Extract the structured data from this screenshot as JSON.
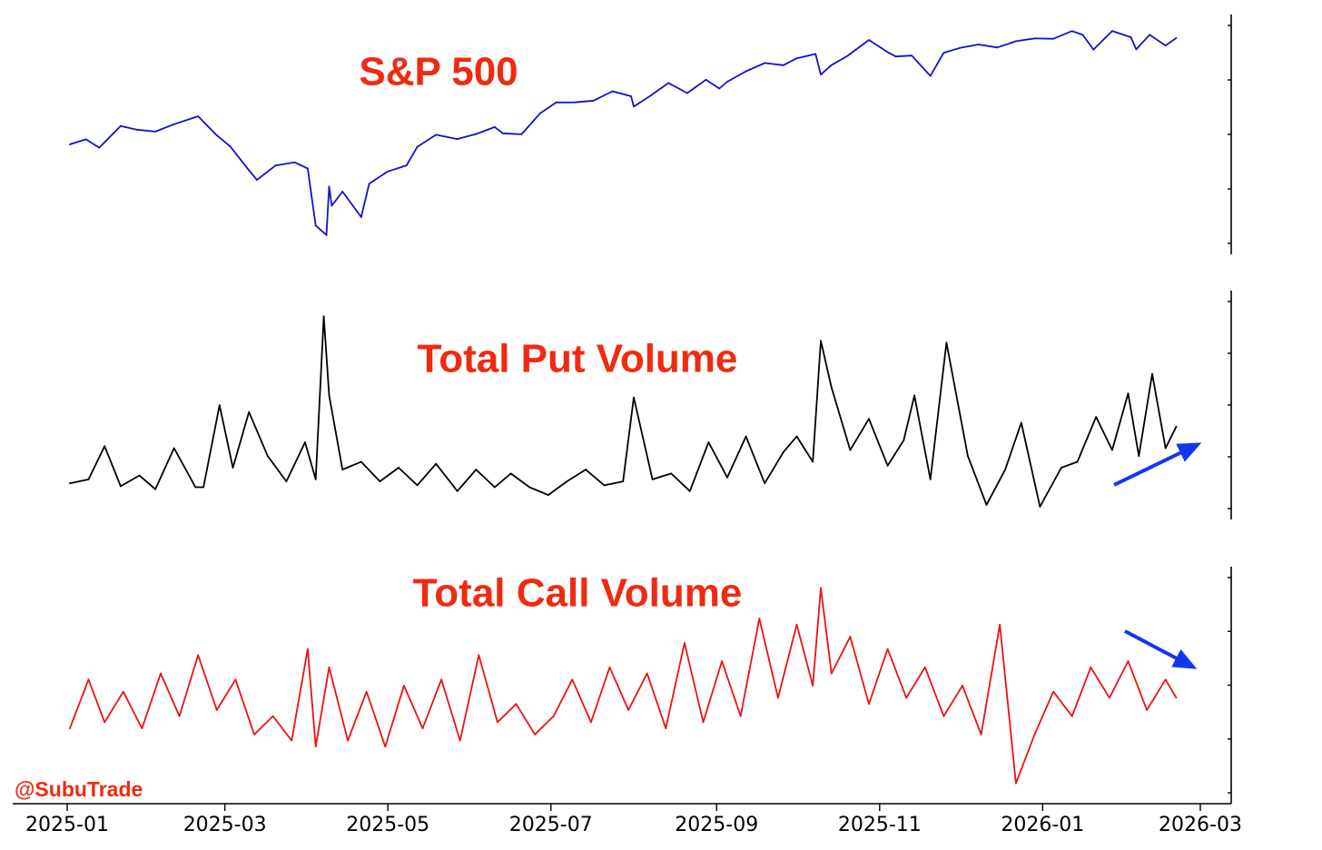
{
  "colors": {
    "sp500": "#1111cc",
    "put": "#000000",
    "call": "#ee1111",
    "title": "#f02a10",
    "arrow": "#1038ee"
  },
  "watermark": "@SubuTrade",
  "chart_data": [
    {
      "type": "line",
      "title": "S&P 500",
      "series": [
        {
          "x": [
            "2025-01-02",
            "2025-01-08",
            "2025-01-13",
            "2025-01-21",
            "2025-01-27",
            "2025-02-03",
            "2025-02-10",
            "2025-02-19",
            "2025-02-26",
            "2025-03-03",
            "2025-03-10",
            "2025-03-13",
            "2025-03-20",
            "2025-03-27",
            "2025-04-01",
            "2025-04-04",
            "2025-04-08",
            "2025-04-09",
            "2025-04-10",
            "2025-04-14",
            "2025-04-21",
            "2025-04-24",
            "2025-05-01",
            "2025-05-08",
            "2025-05-12",
            "2025-05-19",
            "2025-05-27",
            "2025-06-03",
            "2025-06-10",
            "2025-06-13",
            "2025-06-20",
            "2025-06-27",
            "2025-07-03",
            "2025-07-10",
            "2025-07-17",
            "2025-07-24",
            "2025-07-31",
            "2025-08-01",
            "2025-08-07",
            "2025-08-14",
            "2025-08-21",
            "2025-08-28",
            "2025-09-02",
            "2025-09-05",
            "2025-09-12",
            "2025-09-19",
            "2025-09-26",
            "2025-10-01",
            "2025-10-08",
            "2025-10-10",
            "2025-10-14",
            "2025-10-20",
            "2025-10-28",
            "2025-11-04",
            "2025-11-07",
            "2025-11-13",
            "2025-11-20",
            "2025-11-25",
            "2025-12-01",
            "2025-12-08",
            "2025-12-15",
            "2025-12-22",
            "2025-12-29",
            "2026-01-05",
            "2026-01-12",
            "2026-01-16",
            "2026-01-20",
            "2026-01-27",
            "2026-02-03",
            "2026-02-05",
            "2026-02-10",
            "2026-02-16",
            "2026-02-20"
          ],
          "y": [
            5868,
            5918,
            5836,
            6049,
            6012,
            5994,
            6066,
            6144,
            5956,
            5849,
            5614,
            5521,
            5662,
            5693,
            5633,
            5074,
            4982,
            5456,
            5268,
            5406,
            5158,
            5484,
            5604,
            5663,
            5844,
            5963,
            5921,
            5970,
            6038,
            5977,
            5967,
            6173,
            6279,
            6280,
            6297,
            6388,
            6339,
            6238,
            6340,
            6469,
            6370,
            6501,
            6415,
            6481,
            6584,
            6664,
            6643,
            6711,
            6753,
            6552,
            6644,
            6735,
            6890,
            6771,
            6728,
            6737,
            6538,
            6765,
            6812,
            6846,
            6816,
            6878,
            6905,
            6902,
            6977,
            6940,
            6796,
            6978,
            6917,
            6798,
            6941,
            6836,
            6909
          ]
        }
      ],
      "ylim": [
        4900,
        7050
      ]
    },
    {
      "type": "line",
      "title": "Total Put Volume",
      "series": [
        {
          "x": [
            "2025-01-02",
            "2025-01-09",
            "2025-01-15",
            "2025-01-21",
            "2025-01-28",
            "2025-02-03",
            "2025-02-10",
            "2025-02-18",
            "2025-02-21",
            "2025-02-27",
            "2025-03-04",
            "2025-03-10",
            "2025-03-17",
            "2025-03-24",
            "2025-03-31",
            "2025-04-04",
            "2025-04-07",
            "2025-04-09",
            "2025-04-14",
            "2025-04-21",
            "2025-04-28",
            "2025-05-05",
            "2025-05-12",
            "2025-05-19",
            "2025-05-27",
            "2025-06-03",
            "2025-06-10",
            "2025-06-16",
            "2025-06-23",
            "2025-06-30",
            "2025-07-07",
            "2025-07-14",
            "2025-07-21",
            "2025-07-28",
            "2025-08-01",
            "2025-08-08",
            "2025-08-15",
            "2025-08-22",
            "2025-08-29",
            "2025-09-05",
            "2025-09-12",
            "2025-09-19",
            "2025-09-26",
            "2025-10-01",
            "2025-10-07",
            "2025-10-10",
            "2025-10-14",
            "2025-10-21",
            "2025-10-28",
            "2025-11-04",
            "2025-11-10",
            "2025-11-14",
            "2025-11-20",
            "2025-11-26",
            "2025-12-04",
            "2025-12-11",
            "2025-12-18",
            "2025-12-24",
            "2025-12-31",
            "2026-01-08",
            "2026-01-14",
            "2026-01-21",
            "2026-01-27",
            "2026-02-02",
            "2026-02-06",
            "2026-02-11",
            "2026-02-16",
            "2026-02-20"
          ],
          "y": [
            0.82,
            0.86,
            1.2,
            0.79,
            0.9,
            0.76,
            1.18,
            0.78,
            0.78,
            1.62,
            0.98,
            1.55,
            1.1,
            0.84,
            1.24,
            0.86,
            2.53,
            1.72,
            0.96,
            1.04,
            0.84,
            0.98,
            0.8,
            1.02,
            0.74,
            0.96,
            0.78,
            0.92,
            0.78,
            0.7,
            0.84,
            0.96,
            0.8,
            0.84,
            1.7,
            0.86,
            0.92,
            0.74,
            1.24,
            0.88,
            1.3,
            0.82,
            1.14,
            1.3,
            1.04,
            2.28,
            1.8,
            1.16,
            1.48,
            1.0,
            1.26,
            1.72,
            0.86,
            2.26,
            1.1,
            0.6,
            0.96,
            1.44,
            0.58,
            0.98,
            1.04,
            1.5,
            1.16,
            1.74,
            1.1,
            1.94,
            1.18,
            1.4
          ]
        }
      ],
      "ylim": [
        0.45,
        2.7
      ]
    },
    {
      "type": "line",
      "title": "Total Call Volume",
      "series": [
        {
          "x": [
            "2025-01-02",
            "2025-01-09",
            "2025-01-15",
            "2025-01-22",
            "2025-01-29",
            "2025-02-05",
            "2025-02-12",
            "2025-02-19",
            "2025-02-26",
            "2025-03-05",
            "2025-03-12",
            "2025-03-19",
            "2025-03-26",
            "2025-04-01",
            "2025-04-04",
            "2025-04-09",
            "2025-04-16",
            "2025-04-23",
            "2025-04-30",
            "2025-05-07",
            "2025-05-14",
            "2025-05-21",
            "2025-05-28",
            "2025-06-04",
            "2025-06-11",
            "2025-06-18",
            "2025-06-25",
            "2025-07-02",
            "2025-07-09",
            "2025-07-16",
            "2025-07-23",
            "2025-07-30",
            "2025-08-06",
            "2025-08-13",
            "2025-08-20",
            "2025-08-27",
            "2025-09-03",
            "2025-09-10",
            "2025-09-17",
            "2025-09-24",
            "2025-10-01",
            "2025-10-07",
            "2025-10-10",
            "2025-10-14",
            "2025-10-21",
            "2025-10-28",
            "2025-11-04",
            "2025-11-11",
            "2025-11-18",
            "2025-11-25",
            "2025-12-02",
            "2025-12-09",
            "2025-12-16",
            "2025-12-22",
            "2025-12-29",
            "2026-01-05",
            "2026-01-12",
            "2026-01-19",
            "2026-01-26",
            "2026-02-02",
            "2026-02-09",
            "2026-02-16",
            "2026-02-20"
          ],
          "y": [
            1.45,
            1.85,
            1.5,
            1.75,
            1.45,
            1.9,
            1.55,
            2.05,
            1.6,
            1.85,
            1.4,
            1.55,
            1.35,
            2.1,
            1.3,
            1.95,
            1.35,
            1.75,
            1.3,
            1.8,
            1.45,
            1.85,
            1.35,
            2.05,
            1.5,
            1.65,
            1.4,
            1.55,
            1.85,
            1.5,
            1.95,
            1.6,
            1.9,
            1.45,
            2.15,
            1.5,
            2.0,
            1.55,
            2.35,
            1.7,
            2.3,
            1.8,
            2.6,
            1.9,
            2.2,
            1.65,
            2.1,
            1.7,
            1.95,
            1.55,
            1.8,
            1.4,
            2.3,
            1.0,
            1.4,
            1.75,
            1.55,
            1.95,
            1.7,
            2.0,
            1.6,
            1.85,
            1.7
          ]
        }
      ],
      "ylim": [
        0.9,
        2.7
      ]
    }
  ],
  "x_axis": {
    "ticks": [
      "2025-01",
      "2025-03",
      "2025-05",
      "2025-07",
      "2025-09",
      "2025-11",
      "2026-01",
      "2026-03"
    ]
  }
}
